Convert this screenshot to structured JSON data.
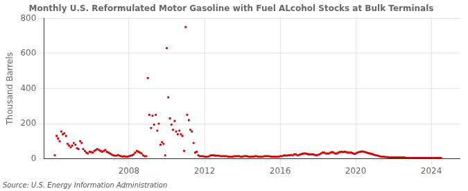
{
  "chart_data": {
    "type": "scatter",
    "title": "Monthly U.S. Reformulated Motor Gasoline with Fuel ALcohol Stocks at Bulk Terminals",
    "ylabel": "Thousand Barrels",
    "annotation": "Source: U.S. Energy Information Administration",
    "color": "#CC0000",
    "marker": "square",
    "grid": true,
    "xlim": [
      2003.5,
      2025.5
    ],
    "xticks": [
      2008,
      2012,
      2016,
      2020,
      2024
    ],
    "ylim": [
      0,
      800
    ],
    "yticks": [
      0,
      200,
      400,
      600,
      800
    ],
    "x": [
      2004.08,
      2004.17,
      2004.25,
      2004.33,
      2004.42,
      2004.5,
      2004.58,
      2004.67,
      2004.75,
      2004.83,
      2004.92,
      2005.0,
      2005.08,
      2005.17,
      2005.25,
      2005.33,
      2005.42,
      2005.5,
      2005.58,
      2005.67,
      2005.75,
      2005.83,
      2005.92,
      2006.0,
      2006.08,
      2006.17,
      2006.25,
      2006.33,
      2006.42,
      2006.5,
      2006.58,
      2006.67,
      2006.75,
      2006.83,
      2006.92,
      2007.0,
      2007.08,
      2007.17,
      2007.25,
      2007.33,
      2007.42,
      2007.5,
      2007.58,
      2007.67,
      2007.75,
      2007.83,
      2007.92,
      2008.0,
      2008.08,
      2008.17,
      2008.25,
      2008.33,
      2008.42,
      2008.5,
      2008.58,
      2008.67,
      2008.75,
      2008.83,
      2008.92,
      2009.0,
      2009.08,
      2009.17,
      2009.25,
      2009.33,
      2009.42,
      2009.5,
      2009.58,
      2009.67,
      2009.75,
      2009.83,
      2009.92,
      2010.0,
      2010.08,
      2010.17,
      2010.25,
      2010.33,
      2010.42,
      2010.5,
      2010.58,
      2010.67,
      2010.75,
      2010.83,
      2010.92,
      2011.0,
      2011.08,
      2011.17,
      2011.25,
      2011.33,
      2011.42,
      2011.5,
      2011.58,
      2011.67,
      2011.75,
      2011.83,
      2011.92,
      2012.0,
      2012.08,
      2012.17,
      2012.25,
      2012.33,
      2012.42,
      2012.5,
      2012.58,
      2012.67,
      2012.75,
      2012.83,
      2012.92,
      2013.0,
      2013.08,
      2013.17,
      2013.25,
      2013.33,
      2013.42,
      2013.5,
      2013.58,
      2013.67,
      2013.75,
      2013.83,
      2013.92,
      2014.0,
      2014.08,
      2014.17,
      2014.25,
      2014.33,
      2014.42,
      2014.5,
      2014.58,
      2014.67,
      2014.75,
      2014.83,
      2014.92,
      2015.0,
      2015.08,
      2015.17,
      2015.25,
      2015.33,
      2015.42,
      2015.5,
      2015.58,
      2015.67,
      2015.75,
      2015.83,
      2015.92,
      2016.0,
      2016.08,
      2016.17,
      2016.25,
      2016.33,
      2016.42,
      2016.5,
      2016.58,
      2016.67,
      2016.75,
      2016.83,
      2016.92,
      2017.0,
      2017.08,
      2017.17,
      2017.25,
      2017.33,
      2017.42,
      2017.5,
      2017.58,
      2017.67,
      2017.75,
      2017.83,
      2017.92,
      2018.0,
      2018.08,
      2018.17,
      2018.25,
      2018.33,
      2018.42,
      2018.5,
      2018.58,
      2018.67,
      2018.75,
      2018.83,
      2018.92,
      2019.0,
      2019.08,
      2019.17,
      2019.25,
      2019.33,
      2019.42,
      2019.5,
      2019.58,
      2019.67,
      2019.75,
      2019.83,
      2019.92,
      2020.0,
      2020.08,
      2020.17,
      2020.25,
      2020.33,
      2020.42,
      2020.5,
      2020.58,
      2020.67,
      2020.75,
      2020.83,
      2020.92,
      2021.0,
      2021.08,
      2021.17,
      2021.25,
      2021.33,
      2021.42,
      2021.5,
      2021.58,
      2021.67,
      2021.75,
      2021.83,
      2021.92,
      2022.0,
      2022.08,
      2022.17,
      2022.25,
      2022.33,
      2022.42,
      2022.5,
      2022.58,
      2022.67,
      2022.75,
      2022.83,
      2022.92,
      2023.0,
      2023.08,
      2023.17,
      2023.25,
      2023.33,
      2023.42,
      2023.5,
      2023.58,
      2023.67,
      2023.75,
      2023.83,
      2023.92,
      2024.0,
      2024.08,
      2024.17,
      2024.25,
      2024.33,
      2024.42,
      2024.5
    ],
    "values": [
      20,
      130,
      115,
      100,
      155,
      140,
      145,
      130,
      85,
      75,
      65,
      75,
      90,
      80,
      60,
      55,
      100,
      90,
      55,
      45,
      35,
      30,
      40,
      38,
      35,
      45,
      50,
      55,
      50,
      45,
      40,
      45,
      50,
      40,
      35,
      30,
      25,
      20,
      18,
      18,
      22,
      18,
      15,
      12,
      15,
      12,
      12,
      15,
      18,
      20,
      25,
      35,
      45,
      40,
      35,
      30,
      20,
      15,
      15,
      460,
      250,
      175,
      245,
      195,
      250,
      160,
      200,
      80,
      95,
      85,
      20,
      630,
      350,
      230,
      195,
      165,
      215,
      155,
      140,
      160,
      140,
      130,
      45,
      750,
      250,
      220,
      165,
      155,
      90,
      35,
      40,
      20,
      15,
      15,
      15,
      12,
      12,
      12,
      15,
      20,
      20,
      20,
      18,
      18,
      18,
      15,
      15,
      15,
      15,
      15,
      12,
      12,
      12,
      12,
      15,
      15,
      15,
      15,
      12,
      12,
      15,
      15,
      15,
      12,
      12,
      12,
      12,
      15,
      15,
      12,
      12,
      12,
      12,
      15,
      15,
      15,
      15,
      12,
      12,
      12,
      12,
      12,
      12,
      15,
      15,
      18,
      20,
      18,
      20,
      20,
      22,
      20,
      25,
      25,
      20,
      22,
      25,
      28,
      30,
      30,
      28,
      25,
      25,
      25,
      25,
      22,
      20,
      22,
      25,
      30,
      35,
      35,
      30,
      30,
      30,
      35,
      38,
      35,
      30,
      30,
      35,
      38,
      40,
      38,
      40,
      38,
      35,
      35,
      35,
      32,
      28,
      30,
      35,
      38,
      40,
      42,
      40,
      38,
      35,
      32,
      30,
      28,
      25,
      22,
      20,
      18,
      15,
      12,
      12,
      12,
      10,
      10,
      8,
      8,
      8,
      8,
      8,
      8,
      8,
      8,
      8,
      8,
      8,
      5,
      5,
      5,
      5,
      5,
      5,
      5,
      5,
      5,
      5,
      5,
      5,
      5,
      5,
      5,
      5,
      5,
      5,
      5,
      5,
      5,
      5,
      5
    ]
  }
}
